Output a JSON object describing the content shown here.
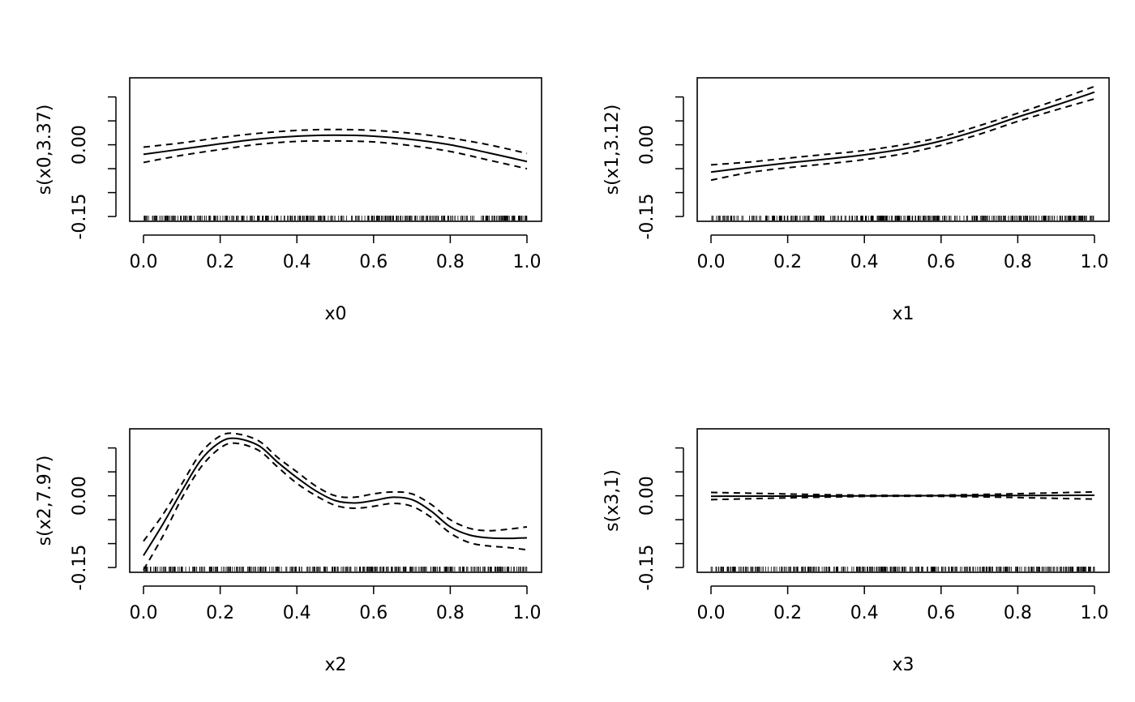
{
  "chart_data": [
    {
      "type": "line",
      "xlabel": "x0",
      "ylabel": "s(x0,3.37)",
      "xlim": [
        0,
        1
      ],
      "ylim": [
        -0.16,
        0.14
      ],
      "x_ticks": [
        0.0,
        0.2,
        0.4,
        0.6,
        0.8,
        1.0
      ],
      "x_tick_labels": [
        "0.0",
        "0.2",
        "0.4",
        "0.6",
        "0.8",
        "1.0"
      ],
      "y_ticks": [
        -0.15,
        -0.1,
        -0.05,
        0.0,
        0.05,
        0.1
      ],
      "y_tick_labels": [
        "-0.15",
        "",
        "",
        "0.00",
        "",
        ""
      ],
      "rug": true,
      "series": [
        {
          "style": "solid",
          "x": [
            0.0,
            0.1,
            0.2,
            0.3,
            0.4,
            0.5,
            0.6,
            0.7,
            0.8,
            0.9,
            1.0
          ],
          "y": [
            -0.02,
            -0.009,
            0.002,
            0.012,
            0.018,
            0.02,
            0.018,
            0.011,
            0.0,
            -0.017,
            -0.035
          ]
        },
        {
          "style": "dashed",
          "x": [
            0.0,
            0.1,
            0.2,
            0.3,
            0.4,
            0.5,
            0.6,
            0.7,
            0.8,
            0.9,
            1.0
          ],
          "y": [
            -0.005,
            0.004,
            0.015,
            0.024,
            0.03,
            0.032,
            0.03,
            0.024,
            0.014,
            0.0,
            -0.018
          ]
        },
        {
          "style": "dashed",
          "x": [
            0.0,
            0.1,
            0.2,
            0.3,
            0.4,
            0.5,
            0.6,
            0.7,
            0.8,
            0.9,
            1.0
          ],
          "y": [
            -0.037,
            -0.022,
            -0.01,
            0.001,
            0.007,
            0.008,
            0.006,
            -0.002,
            -0.014,
            -0.032,
            -0.05
          ]
        }
      ]
    },
    {
      "type": "line",
      "xlabel": "x1",
      "ylabel": "s(x1,3.12)",
      "xlim": [
        0,
        1
      ],
      "ylim": [
        -0.16,
        0.14
      ],
      "x_ticks": [
        0.0,
        0.2,
        0.4,
        0.6,
        0.8,
        1.0
      ],
      "x_tick_labels": [
        "0.0",
        "0.2",
        "0.4",
        "0.6",
        "0.8",
        "1.0"
      ],
      "y_ticks": [
        -0.15,
        -0.1,
        -0.05,
        0.0,
        0.05,
        0.1
      ],
      "y_tick_labels": [
        "-0.15",
        "",
        "",
        "0.00",
        "",
        ""
      ],
      "rug": true,
      "series": [
        {
          "style": "solid",
          "x": [
            0.0,
            0.1,
            0.2,
            0.3,
            0.4,
            0.5,
            0.6,
            0.7,
            0.8,
            0.9,
            1.0
          ],
          "y": [
            -0.057,
            -0.047,
            -0.038,
            -0.03,
            -0.021,
            -0.009,
            0.008,
            0.031,
            0.058,
            0.083,
            0.11
          ]
        },
        {
          "style": "dashed",
          "x": [
            0.0,
            0.1,
            0.2,
            0.3,
            0.4,
            0.5,
            0.6,
            0.7,
            0.8,
            0.9,
            1.0
          ],
          "y": [
            -0.042,
            -0.036,
            -0.028,
            -0.02,
            -0.012,
            0.0,
            0.016,
            0.04,
            0.066,
            0.093,
            0.122
          ]
        },
        {
          "style": "dashed",
          "x": [
            0.0,
            0.1,
            0.2,
            0.3,
            0.4,
            0.5,
            0.6,
            0.7,
            0.8,
            0.9,
            1.0
          ],
          "y": [
            -0.074,
            -0.058,
            -0.048,
            -0.04,
            -0.031,
            -0.019,
            -0.001,
            0.022,
            0.049,
            0.073,
            0.096
          ]
        }
      ]
    },
    {
      "type": "line",
      "xlabel": "x2",
      "ylabel": "s(x2,7.97)",
      "xlim": [
        0,
        1
      ],
      "ylim": [
        -0.16,
        0.14
      ],
      "x_ticks": [
        0.0,
        0.2,
        0.4,
        0.6,
        0.8,
        1.0
      ],
      "x_tick_labels": [
        "0.0",
        "0.2",
        "0.4",
        "0.6",
        "0.8",
        "1.0"
      ],
      "y_ticks": [
        -0.15,
        -0.1,
        -0.05,
        0.0,
        0.05,
        0.1
      ],
      "y_tick_labels": [
        "-0.15",
        "",
        "",
        "0.00",
        "",
        ""
      ],
      "rug": true,
      "series": [
        {
          "style": "solid",
          "x": [
            0.0,
            0.05,
            0.1,
            0.15,
            0.2,
            0.24,
            0.3,
            0.35,
            0.4,
            0.45,
            0.5,
            0.55,
            0.6,
            0.65,
            0.7,
            0.75,
            0.8,
            0.85,
            0.9,
            0.95,
            1.0
          ],
          "y": [
            -0.125,
            -0.06,
            0.01,
            0.075,
            0.112,
            0.12,
            0.105,
            0.07,
            0.038,
            0.01,
            -0.01,
            -0.015,
            -0.01,
            -0.003,
            -0.008,
            -0.032,
            -0.065,
            -0.082,
            -0.088,
            -0.089,
            -0.088
          ]
        },
        {
          "style": "dashed",
          "x": [
            0.0,
            0.05,
            0.1,
            0.15,
            0.2,
            0.24,
            0.3,
            0.35,
            0.4,
            0.45,
            0.5,
            0.55,
            0.6,
            0.65,
            0.7,
            0.75,
            0.8,
            0.85,
            0.9,
            0.95,
            1.0
          ],
          "y": [
            -0.095,
            -0.04,
            0.025,
            0.09,
            0.125,
            0.13,
            0.115,
            0.08,
            0.05,
            0.02,
            0.0,
            -0.003,
            0.004,
            0.008,
            0.004,
            -0.018,
            -0.05,
            -0.068,
            -0.073,
            -0.07,
            -0.065
          ]
        },
        {
          "style": "dashed",
          "x": [
            0.0,
            0.05,
            0.1,
            0.15,
            0.2,
            0.24,
            0.3,
            0.35,
            0.4,
            0.45,
            0.5,
            0.55,
            0.6,
            0.65,
            0.7,
            0.75,
            0.8,
            0.85,
            0.9,
            0.95,
            1.0
          ],
          "y": [
            -0.155,
            -0.085,
            -0.005,
            0.06,
            0.1,
            0.11,
            0.095,
            0.06,
            0.026,
            0.0,
            -0.02,
            -0.026,
            -0.022,
            -0.016,
            -0.022,
            -0.045,
            -0.078,
            -0.098,
            -0.105,
            -0.108,
            -0.113
          ]
        }
      ]
    },
    {
      "type": "line",
      "xlabel": "x3",
      "ylabel": "s(x3,1)",
      "xlim": [
        0,
        1
      ],
      "ylim": [
        -0.16,
        0.14
      ],
      "x_ticks": [
        0.0,
        0.2,
        0.4,
        0.6,
        0.8,
        1.0
      ],
      "x_tick_labels": [
        "0.0",
        "0.2",
        "0.4",
        "0.6",
        "0.8",
        "1.0"
      ],
      "y_ticks": [
        -0.15,
        -0.1,
        -0.05,
        0.0,
        0.05,
        0.1
      ],
      "y_tick_labels": [
        "-0.15",
        "",
        "",
        "0.00",
        "",
        ""
      ],
      "rug": true,
      "series": [
        {
          "style": "solid",
          "x": [
            0.0,
            1.0
          ],
          "y": [
            -0.001,
            0.001
          ]
        },
        {
          "style": "dashed",
          "x": [
            0.0,
            0.5,
            1.0
          ],
          "y": [
            0.007,
            0.0008,
            0.008
          ]
        },
        {
          "style": "dashed",
          "x": [
            0.0,
            0.5,
            1.0
          ],
          "y": [
            -0.008,
            -0.0008,
            -0.007
          ]
        }
      ]
    }
  ]
}
